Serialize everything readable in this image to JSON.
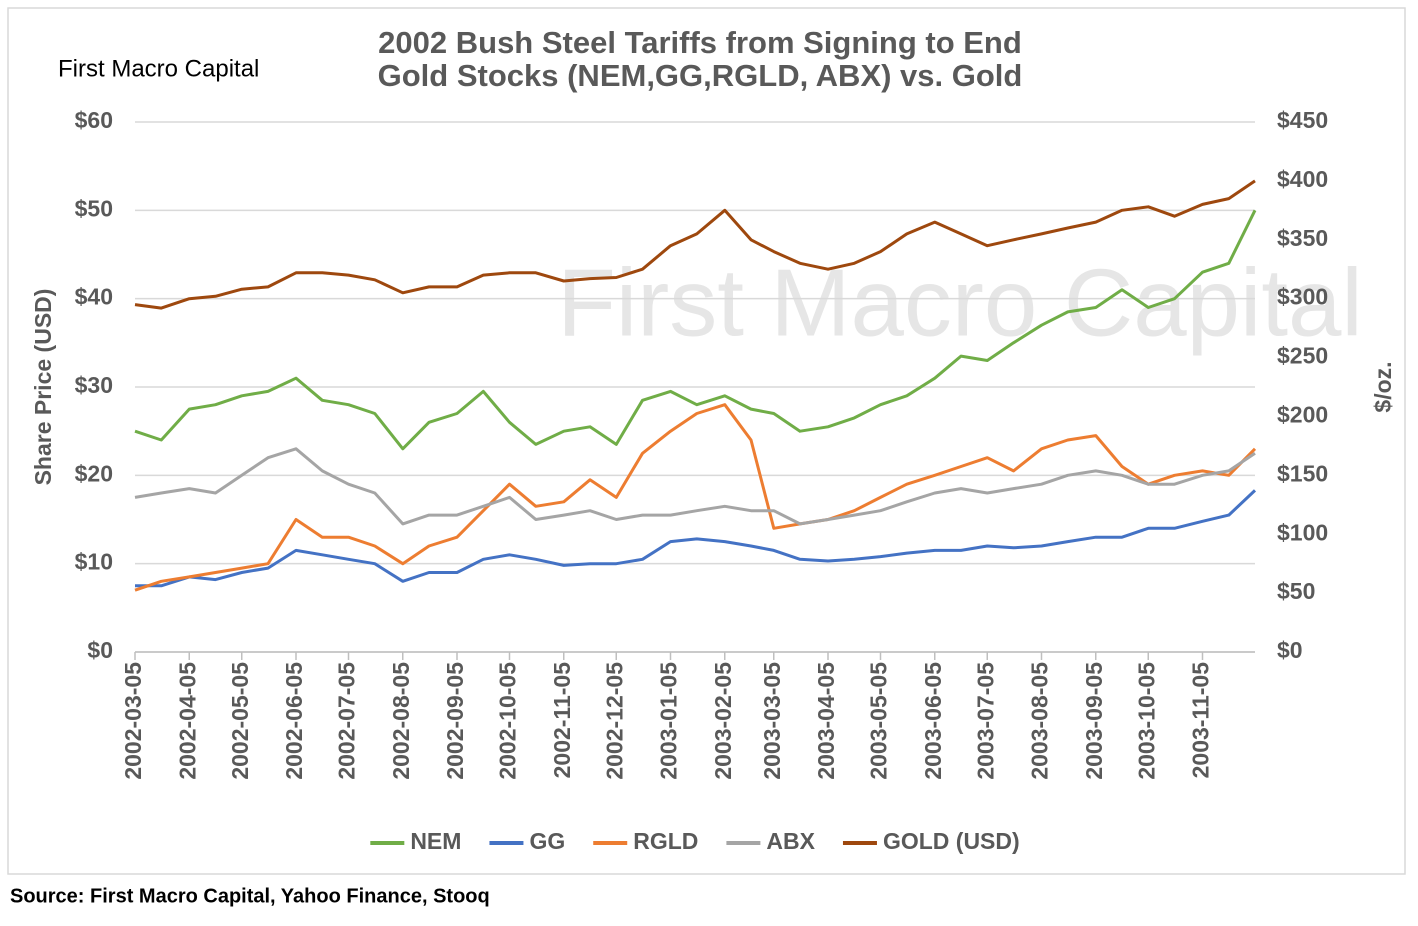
{
  "chart_data": {
    "type": "line",
    "title_lines": [
      "2002 Bush Steel Tariffs from Signing to End",
      "Gold Stocks (NEM,GG,RGLD, ABX) vs. Gold"
    ],
    "brand": "First Macro Capital",
    "watermark": "First Macro Capital",
    "source": "Source: First Macro Capital, Yahoo Finance, Stooq",
    "ylabel": "Share Price (USD)",
    "y2label": "$/oz.",
    "x": [
      "2002-03-05",
      "2002-03-20",
      "2002-04-05",
      "2002-04-20",
      "2002-05-05",
      "2002-05-20",
      "2002-06-05",
      "2002-06-20",
      "2002-07-05",
      "2002-07-20",
      "2002-08-05",
      "2002-08-20",
      "2002-09-05",
      "2002-09-20",
      "2002-10-05",
      "2002-10-20",
      "2002-11-05",
      "2002-11-20",
      "2002-12-05",
      "2002-12-20",
      "2003-01-05",
      "2003-01-20",
      "2003-02-05",
      "2003-02-20",
      "2003-03-05",
      "2003-03-20",
      "2003-04-05",
      "2003-04-20",
      "2003-05-05",
      "2003-05-20",
      "2003-06-05",
      "2003-06-20",
      "2003-07-05",
      "2003-07-20",
      "2003-08-05",
      "2003-08-20",
      "2003-09-05",
      "2003-09-20",
      "2003-10-05",
      "2003-10-20",
      "2003-11-05",
      "2003-11-20",
      "2003-12-05"
    ],
    "xlim": [
      "2002-03-05",
      "2003-12-05"
    ],
    "xticks": [
      "2002-03-05",
      "2002-04-05",
      "2002-05-05",
      "2002-06-05",
      "2002-07-05",
      "2002-08-05",
      "2002-09-05",
      "2002-10-05",
      "2002-11-05",
      "2002-12-05",
      "2003-01-05",
      "2003-02-05",
      "2003-03-05",
      "2003-04-05",
      "2003-05-05",
      "2003-06-05",
      "2003-07-05",
      "2003-08-05",
      "2003-09-05",
      "2003-10-05",
      "2003-11-05"
    ],
    "ylim": [
      0,
      60
    ],
    "yticks": [
      {
        "value": 0,
        "label": "$0"
      },
      {
        "value": 10,
        "label": "$10"
      },
      {
        "value": 20,
        "label": "$20"
      },
      {
        "value": 30,
        "label": "$30"
      },
      {
        "value": 40,
        "label": "$40"
      },
      {
        "value": 50,
        "label": "$50"
      },
      {
        "value": 60,
        "label": "$60"
      }
    ],
    "y2lim": [
      0,
      450
    ],
    "y2ticks": [
      {
        "value": 0,
        "label": "$0"
      },
      {
        "value": 50,
        "label": "$50"
      },
      {
        "value": 100,
        "label": "$100"
      },
      {
        "value": 150,
        "label": "$150"
      },
      {
        "value": 200,
        "label": "$200"
      },
      {
        "value": 250,
        "label": "$250"
      },
      {
        "value": 300,
        "label": "$300"
      },
      {
        "value": 350,
        "label": "$350"
      },
      {
        "value": 400,
        "label": "$400"
      },
      {
        "value": 450,
        "label": "$450"
      }
    ],
    "grid": true,
    "legend": "bottom",
    "series": [
      {
        "name": "NEM",
        "color": "#70ad47",
        "values": [
          25,
          24,
          27.5,
          28,
          29,
          29.5,
          31,
          28.5,
          28,
          27,
          23,
          26,
          27,
          29.5,
          26,
          23.5,
          25,
          25.5,
          23.5,
          28.5,
          29.5,
          28,
          29,
          27.5,
          27,
          25,
          25.5,
          26.5,
          28,
          29,
          31,
          33.5,
          33,
          35,
          37,
          38.5,
          39,
          41,
          39,
          40,
          43,
          44,
          50
        ]
      },
      {
        "name": "GG",
        "color": "#4472c4",
        "values": [
          7.5,
          7.5,
          8.5,
          8.2,
          9,
          9.5,
          11.5,
          11,
          10.5,
          10,
          8,
          9,
          9,
          10.5,
          11,
          10.5,
          9.8,
          10,
          10,
          10.5,
          12.5,
          12.8,
          12.5,
          12,
          11.5,
          10.5,
          10.3,
          10.5,
          10.8,
          11.2,
          11.5,
          11.5,
          12,
          11.8,
          12,
          12.5,
          13,
          13,
          14,
          14,
          14.8,
          15.5,
          18.3
        ]
      },
      {
        "name": "RGLD",
        "color": "#ed7d31",
        "values": [
          7,
          8,
          8.5,
          9,
          9.5,
          10,
          15,
          13,
          13,
          12,
          10,
          12,
          13,
          16,
          19,
          16.5,
          17,
          19.5,
          17.5,
          22.5,
          25,
          27,
          28,
          24,
          14,
          14.5,
          15,
          16,
          17.5,
          19,
          20,
          21,
          22,
          20.5,
          23,
          24,
          24.5,
          21,
          19,
          20,
          20.5,
          20,
          23
        ]
      },
      {
        "name": "ABX",
        "color": "#a5a5a5",
        "values": [
          17.5,
          18,
          18.5,
          18,
          20,
          22,
          23,
          20.5,
          19,
          18,
          14.5,
          15.5,
          15.5,
          16.5,
          17.5,
          15,
          15.5,
          16,
          15,
          15.5,
          15.5,
          16,
          16.5,
          16,
          16,
          14.5,
          15,
          15.5,
          16,
          17,
          18,
          18.5,
          18,
          18.5,
          19,
          20,
          20.5,
          20,
          19,
          19,
          20,
          20.5,
          22.5
        ]
      },
      {
        "name": "GOLD (USD)",
        "color": "#9e480e",
        "axis": "y2",
        "values": [
          295,
          292,
          300,
          302,
          308,
          310,
          322,
          322,
          320,
          316,
          305,
          310,
          310,
          320,
          322,
          322,
          315,
          317,
          318,
          325,
          345,
          355,
          375,
          350,
          340,
          330,
          325,
          330,
          340,
          355,
          365,
          355,
          345,
          350,
          355,
          360,
          365,
          375,
          378,
          370,
          380,
          385,
          400
        ]
      }
    ]
  }
}
